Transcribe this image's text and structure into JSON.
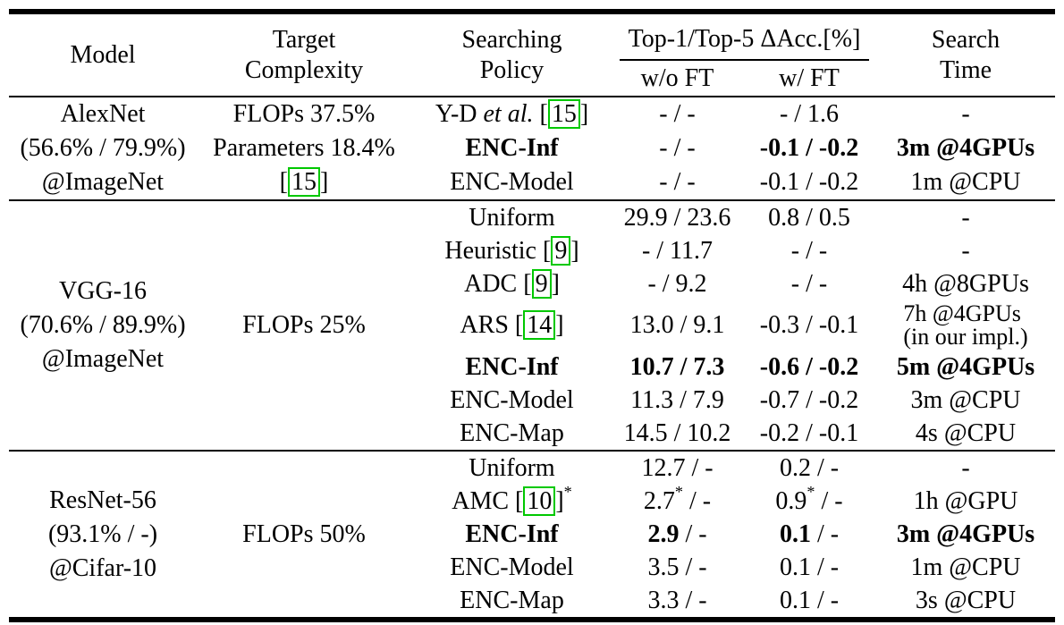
{
  "colors": {
    "cite_box": "#00c800",
    "text": "#000000",
    "background": "#ffffff"
  },
  "table": {
    "header": {
      "model": "Model",
      "target_complexity": [
        "Target",
        "Complexity"
      ],
      "searching_policy": [
        "Searching",
        "Policy"
      ],
      "acc_group": "Top-1/Top-5 ΔAcc.[%]",
      "wo_ft": "w/o FT",
      "w_ft": "w/ FT",
      "search_time": [
        "Search",
        "Time"
      ]
    },
    "groups": [
      {
        "model_lines": [
          "AlexNet",
          "(56.6% / 79.9%)",
          "@ImageNet"
        ],
        "target_lines": [
          [
            {
              "t": "FLOPs 37.5%"
            }
          ],
          [
            {
              "t": "Parameters 18.4%"
            }
          ],
          [
            {
              "t": "["
            },
            {
              "t": "15",
              "cite": true
            },
            {
              "t": "]"
            }
          ]
        ],
        "rows": [
          {
            "policy": [
              {
                "t": "Y-D "
              },
              {
                "t": "et al.",
                "italic": true
              },
              {
                "t": " ["
              },
              {
                "t": "15",
                "cite": true
              },
              {
                "t": "]"
              }
            ],
            "wo_ft": "- / -",
            "w_ft": "- / 1.6",
            "time": "-"
          },
          {
            "policy": [
              {
                "t": "ENC-Inf",
                "bold": true
              }
            ],
            "wo_ft": "- / -",
            "w_ft": [
              {
                "t": "-0.1 / -0.2",
                "bold": true
              }
            ],
            "time": [
              {
                "t": "3m @4GPUs",
                "bold": true
              }
            ]
          },
          {
            "policy": "ENC-Model",
            "wo_ft": "- / -",
            "w_ft": "-0.1 / -0.2",
            "time": "1m @CPU"
          }
        ]
      },
      {
        "model_lines": [
          "VGG-16",
          "(70.6% / 89.9%)",
          "@ImageNet"
        ],
        "target_lines": [
          [
            {
              "t": "FLOPs 25%"
            }
          ]
        ],
        "rows": [
          {
            "policy": "Uniform",
            "wo_ft": "29.9 / 23.6",
            "w_ft": "0.8 / 0.5",
            "time": "-"
          },
          {
            "policy": [
              {
                "t": "Heuristic ["
              },
              {
                "t": "9",
                "cite": true
              },
              {
                "t": "]"
              }
            ],
            "wo_ft": "- / 11.7",
            "w_ft": "- / -",
            "time": "-"
          },
          {
            "policy": [
              {
                "t": "ADC ["
              },
              {
                "t": "9",
                "cite": true
              },
              {
                "t": "]"
              }
            ],
            "wo_ft": "- / 9.2",
            "w_ft": "- / -",
            "time": "4h @8GPUs"
          },
          {
            "policy": [
              {
                "t": "ARS ["
              },
              {
                "t": "14",
                "cite": true
              },
              {
                "t": "]"
              }
            ],
            "wo_ft": "13.0 / 9.1",
            "w_ft": "-0.3 / -0.1",
            "time": [
              {
                "t": "7h @4GPUs"
              },
              {
                "br": true
              },
              {
                "t": "(in our impl.)"
              }
            ]
          },
          {
            "policy": [
              {
                "t": "ENC-Inf",
                "bold": true
              }
            ],
            "wo_ft": [
              {
                "t": "10.7 / 7.3",
                "bold": true
              }
            ],
            "w_ft": [
              {
                "t": "-0.6 / -0.2",
                "bold": true
              }
            ],
            "time": [
              {
                "t": "5m @4GPUs",
                "bold": true
              }
            ]
          },
          {
            "policy": "ENC-Model",
            "wo_ft": "11.3 / 7.9",
            "w_ft": "-0.7 / -0.2",
            "time": "3m @CPU"
          },
          {
            "policy": "ENC-Map",
            "wo_ft": "14.5 / 10.2",
            "w_ft": "-0.2 / -0.1",
            "time": "4s @CPU"
          }
        ]
      },
      {
        "model_lines": [
          "ResNet-56",
          "(93.1% / -)",
          "@Cifar-10"
        ],
        "target_lines": [
          [
            {
              "t": "FLOPs 50%"
            }
          ]
        ],
        "rows": [
          {
            "policy": "Uniform",
            "wo_ft": "12.7 / -",
            "w_ft": "0.2 / -",
            "time": "-"
          },
          {
            "policy": [
              {
                "t": "AMC ["
              },
              {
                "t": "10",
                "cite": true
              },
              {
                "t": "]"
              },
              {
                "t": "*",
                "sup": true
              }
            ],
            "wo_ft": [
              {
                "t": "2.7"
              },
              {
                "t": "*",
                "sup": true
              },
              {
                "t": " / -"
              }
            ],
            "w_ft": [
              {
                "t": "0.9"
              },
              {
                "t": "*",
                "sup": true
              },
              {
                "t": " / -"
              }
            ],
            "time": "1h @GPU"
          },
          {
            "policy": [
              {
                "t": "ENC-Inf",
                "bold": true
              }
            ],
            "wo_ft": [
              {
                "t": "2.9",
                "bold": true
              },
              {
                "t": " / -"
              }
            ],
            "w_ft": [
              {
                "t": "0.1",
                "bold": true
              },
              {
                "t": " / -"
              }
            ],
            "time": [
              {
                "t": "3m @4GPUs",
                "bold": true
              }
            ]
          },
          {
            "policy": "ENC-Model",
            "wo_ft": "3.5 / -",
            "w_ft": "0.1 / -",
            "time": "1m @CPU"
          },
          {
            "policy": "ENC-Map",
            "wo_ft": "3.3 / -",
            "w_ft": "0.1 / -",
            "time": "3s @CPU"
          }
        ]
      }
    ]
  }
}
